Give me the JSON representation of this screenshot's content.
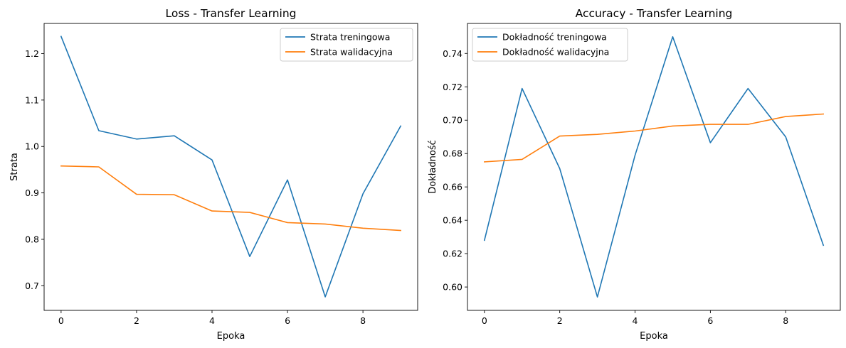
{
  "colors": {
    "series1": "#1f77b4",
    "series2": "#ff7f0e",
    "axis": "#000000",
    "legend_border": "#cccccc"
  },
  "chart_data": [
    {
      "type": "line",
      "title": "Loss - Transfer Learning",
      "xlabel": "Epoka",
      "ylabel": "Strata",
      "x": [
        0,
        1,
        2,
        3,
        4,
        5,
        6,
        7,
        8,
        9
      ],
      "xlim": [
        -0.45,
        9.45
      ],
      "ylim": [
        0.647,
        1.265
      ],
      "xticks": [
        0,
        2,
        4,
        6,
        8
      ],
      "xtick_labels": [
        "0",
        "2",
        "4",
        "6",
        "8"
      ],
      "yticks": [
        0.7,
        0.8,
        0.9,
        1.0,
        1.1,
        1.2
      ],
      "ytick_labels": [
        "0.7",
        "0.8",
        "0.9",
        "1.0",
        "1.1",
        "1.2"
      ],
      "grid": false,
      "legend_position": "top-right",
      "series": [
        {
          "name": "Strata treningowa",
          "color": "#1f77b4",
          "values": [
            1.237,
            1.034,
            1.016,
            1.023,
            0.971,
            0.763,
            0.928,
            0.676,
            0.898,
            1.044
          ]
        },
        {
          "name": "Strata walidacyjna",
          "color": "#ff7f0e",
          "values": [
            0.958,
            0.956,
            0.897,
            0.896,
            0.861,
            0.858,
            0.836,
            0.833,
            0.824,
            0.819
          ]
        }
      ]
    },
    {
      "type": "line",
      "title": "Accuracy - Transfer Learning",
      "xlabel": "Epoka",
      "ylabel": "Dokładność",
      "x": [
        0,
        1,
        2,
        3,
        4,
        5,
        6,
        7,
        8,
        9
      ],
      "xlim": [
        -0.45,
        9.45
      ],
      "ylim": [
        0.586,
        0.758
      ],
      "xticks": [
        0,
        2,
        4,
        6,
        8
      ],
      "xtick_labels": [
        "0",
        "2",
        "4",
        "6",
        "8"
      ],
      "yticks": [
        0.6,
        0.62,
        0.64,
        0.66,
        0.68,
        0.7,
        0.72,
        0.74
      ],
      "ytick_labels": [
        "0.60",
        "0.62",
        "0.64",
        "0.66",
        "0.68",
        "0.70",
        "0.72",
        "0.74"
      ],
      "grid": false,
      "legend_position": "top-left",
      "series": [
        {
          "name": "Dokładność treningowa",
          "color": "#1f77b4",
          "values": [
            0.628,
            0.719,
            0.671,
            0.594,
            0.679,
            0.75,
            0.6865,
            0.719,
            0.69,
            0.625
          ]
        },
        {
          "name": "Dokładność walidacyjna",
          "color": "#ff7f0e",
          "values": [
            0.675,
            0.6765,
            0.6905,
            0.6915,
            0.6935,
            0.6965,
            0.6975,
            0.6975,
            0.7022,
            0.7037
          ]
        }
      ]
    }
  ]
}
